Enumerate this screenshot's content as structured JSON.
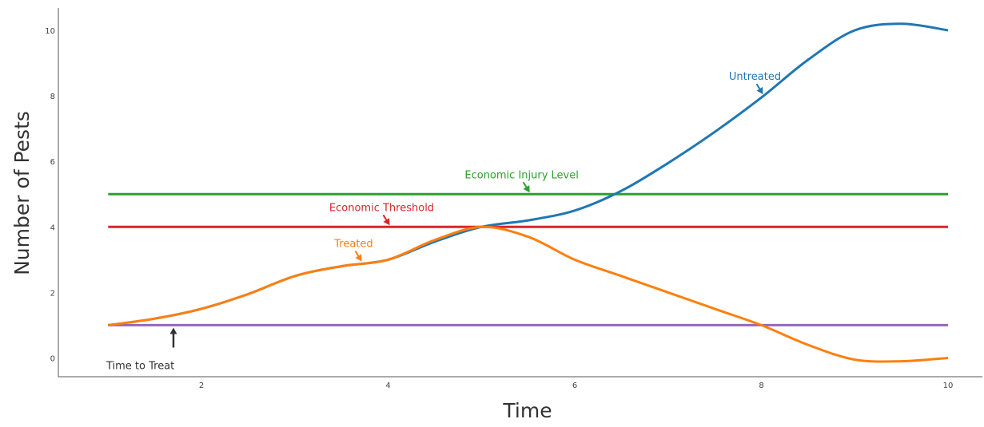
{
  "chart_data": {
    "type": "line",
    "xlabel": "Time",
    "ylabel": "Number of Pests",
    "xlim": [
      0.0,
      10.25
    ],
    "ylim": [
      -0.6,
      10.6
    ],
    "xticks": [
      2,
      4,
      6,
      8,
      10
    ],
    "yticks": [
      0,
      2,
      4,
      6,
      8,
      10
    ],
    "grid": false,
    "series": [
      {
        "name": "Untreated",
        "color": "#1f77b4",
        "x": [
          1,
          1.5,
          2,
          2.5,
          3,
          3.5,
          4,
          4.5,
          5,
          5.5,
          6,
          6.5,
          7,
          7.5,
          8,
          8.5,
          9,
          9.5,
          10
        ],
        "y": [
          1.0,
          1.2,
          1.5,
          1.95,
          2.5,
          2.8,
          3.0,
          3.55,
          4.0,
          4.2,
          4.5,
          5.1,
          5.95,
          6.9,
          7.95,
          9.1,
          10.0,
          10.2,
          10.0
        ]
      },
      {
        "name": "Treated",
        "color": "#ff7f0e",
        "x": [
          1,
          1.5,
          2,
          2.5,
          3,
          3.5,
          4,
          4.5,
          5,
          5.5,
          6,
          6.5,
          7,
          7.5,
          8,
          8.5,
          9,
          9.5,
          10
        ],
        "y": [
          1.0,
          1.2,
          1.5,
          1.95,
          2.5,
          2.8,
          3.0,
          3.6,
          4.0,
          3.7,
          3.0,
          2.5,
          2.0,
          1.5,
          1.0,
          0.4,
          -0.05,
          -0.1,
          0.0
        ]
      },
      {
        "name": "Economic Injury Level",
        "color": "#2ca02c",
        "x": [
          1,
          10
        ],
        "y": [
          5,
          5
        ]
      },
      {
        "name": "Economic Threshold",
        "color": "#d62728",
        "x": [
          1,
          10
        ],
        "y": [
          4,
          4
        ]
      },
      {
        "name": "Time to Treat",
        "color": "#9467bd",
        "x": [
          1,
          10
        ],
        "y": [
          1,
          1
        ]
      }
    ],
    "annotations": [
      {
        "text": "Untreated",
        "x": 8.0,
        "y": 8.0,
        "color": "#1f77b4"
      },
      {
        "text": "Economic Injury Level",
        "x": 5.5,
        "y": 5.0,
        "color": "#2ca02c"
      },
      {
        "text": "Economic Threshold",
        "x": 4.0,
        "y": 4.0,
        "color": "#d62728"
      },
      {
        "text": "Treated",
        "x": 3.7,
        "y": 2.9,
        "color": "#ff7f0e"
      },
      {
        "text": "Time to Treat",
        "x": 1.7,
        "y": 1.0,
        "color": "#333333"
      }
    ]
  }
}
